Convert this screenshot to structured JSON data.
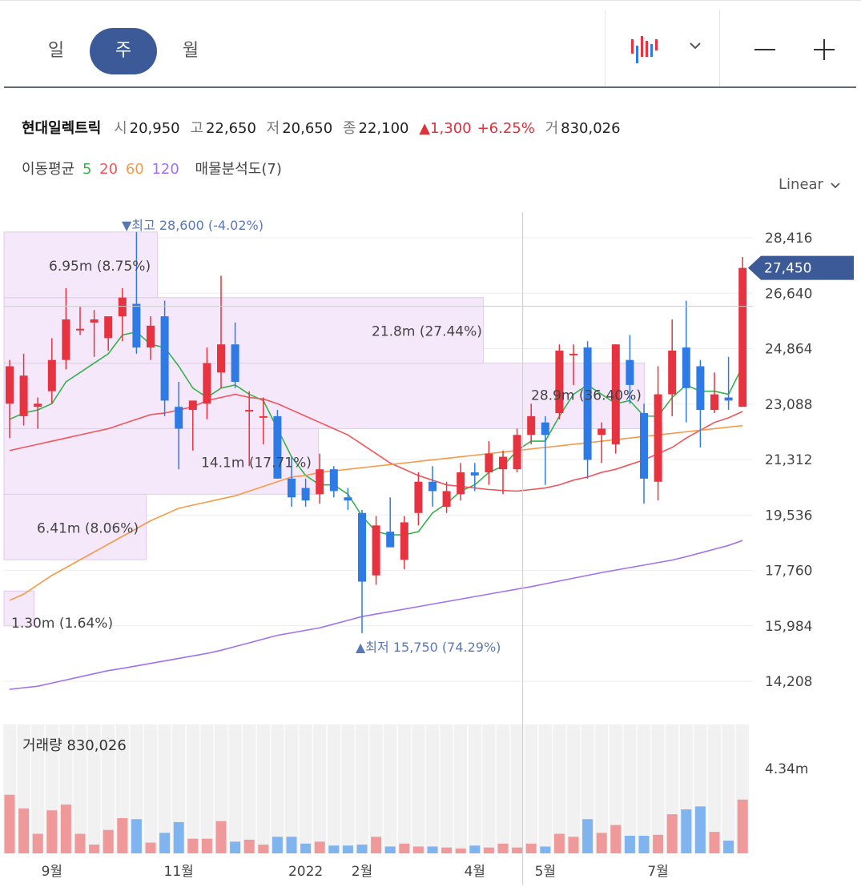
{
  "period_tabs": [
    {
      "label": "일",
      "active": false
    },
    {
      "label": "주",
      "active": true
    },
    {
      "label": "월",
      "active": false
    }
  ],
  "controls": {
    "chart_type_icon": "candlestick-icon",
    "dropdown_icon": "chevron-down-icon",
    "zoom_out_icon": "minus-icon",
    "zoom_in_icon": "plus-icon"
  },
  "stock": {
    "name": "현대일렉트릭",
    "open_label": "시",
    "open": "20,950",
    "high_label": "고",
    "high": "22,650",
    "low_label": "저",
    "low": "20,650",
    "close_label": "종",
    "close": "22,100",
    "change": "▲1,300",
    "change_pct": "+6.25%",
    "volume_label": "거",
    "volume": "830,026"
  },
  "indicators": {
    "ma_label": "이동평균",
    "ma_periods": [
      "5",
      "20",
      "60",
      "120"
    ],
    "ma_colors": [
      "#35b34a",
      "#f0555a",
      "#f59a48",
      "#a070f0"
    ],
    "profile_label": "매물분석도(7)"
  },
  "scale_label": "Linear",
  "colors": {
    "up": "#e6333f",
    "down": "#2f7be5",
    "vol_up": "#f0999b",
    "vol_down": "#7fb4ef",
    "accent": "#3d5a98",
    "profile": "#f5e8fb"
  },
  "chart_data": {
    "type": "candlestick",
    "price_axis": {
      "min": 13500,
      "max": 29200,
      "ticks": [
        "28,416",
        "26,640",
        "24,864",
        "23,088",
        "21,312",
        "19,536",
        "17,760",
        "15,984",
        "14,208"
      ]
    },
    "current_price_label": "27,450",
    "current_price": 27450,
    "crosshair_price": 26220,
    "high_annotation": "▼최고 28,600 (-4.02%)",
    "low_annotation": "▲최저 15,750 (74.29%)",
    "x_labels": [
      {
        "label": "9월",
        "index": 3
      },
      {
        "label": "11월",
        "index": 12
      },
      {
        "label": "2022",
        "index": 21
      },
      {
        "label": "2월",
        "index": 25
      },
      {
        "label": "4월",
        "index": 33
      },
      {
        "label": "5월",
        "index": 38
      },
      {
        "label": "7월",
        "index": 46
      }
    ],
    "volume_title": "거래량 830,026",
    "volume_tick": "4.34m",
    "volume_max": 4.34,
    "volume_profile": [
      {
        "low": 15984,
        "high": 17100,
        "label": "1.30m (1.64%)",
        "width_frac": 0.04
      },
      {
        "low": 18100,
        "high": 20200,
        "label": "6.41m (8.06%)",
        "width_frac": 0.19
      },
      {
        "low": 20200,
        "high": 22300,
        "label": "14.1m (17.71%)",
        "width_frac": 0.42
      },
      {
        "low": 22300,
        "high": 24400,
        "label": "28.9m (36.40%)",
        "width_frac": 0.855
      },
      {
        "low": 24400,
        "high": 26500,
        "label": "21.8m (27.44%)",
        "width_frac": 0.64
      },
      {
        "low": 26500,
        "high": 28600,
        "label": "6.95m (8.75%)",
        "width_frac": 0.205
      }
    ],
    "candles": [
      {
        "o": 23100,
        "h": 24500,
        "l": 22000,
        "c": 24300,
        "v": 3.0
      },
      {
        "o": 22700,
        "h": 24700,
        "l": 22400,
        "c": 24000,
        "v": 2.3
      },
      {
        "o": 23000,
        "h": 23300,
        "l": 22300,
        "c": 23100,
        "v": 1.0
      },
      {
        "o": 23500,
        "h": 25200,
        "l": 23100,
        "c": 24500,
        "v": 2.2
      },
      {
        "o": 24500,
        "h": 26800,
        "l": 24200,
        "c": 25800,
        "v": 2.5
      },
      {
        "o": 25500,
        "h": 26200,
        "l": 25300,
        "c": 25500,
        "v": 1.0
      },
      {
        "o": 25700,
        "h": 26100,
        "l": 24600,
        "c": 25800,
        "v": 0.45
      },
      {
        "o": 25200,
        "h": 25800,
        "l": 24800,
        "c": 25900,
        "v": 1.2
      },
      {
        "o": 25900,
        "h": 26800,
        "l": 25100,
        "c": 26500,
        "v": 1.8
      },
      {
        "o": 26300,
        "h": 28600,
        "l": 24700,
        "c": 24900,
        "v": 1.75
      },
      {
        "o": 24900,
        "h": 25900,
        "l": 24500,
        "c": 25600,
        "v": 0.55
      },
      {
        "o": 25900,
        "h": 26400,
        "l": 22700,
        "c": 23200,
        "v": 1.05
      },
      {
        "o": 23000,
        "h": 23800,
        "l": 21000,
        "c": 22300,
        "v": 1.6
      },
      {
        "o": 22900,
        "h": 23200,
        "l": 21600,
        "c": 23200,
        "v": 0.75
      },
      {
        "o": 23100,
        "h": 24900,
        "l": 22600,
        "c": 24400,
        "v": 0.75
      },
      {
        "o": 24100,
        "h": 27200,
        "l": 23600,
        "c": 25000,
        "v": 1.65
      },
      {
        "o": 25000,
        "h": 25700,
        "l": 23600,
        "c": 23800,
        "v": 0.6
      },
      {
        "o": 22900,
        "h": 23500,
        "l": 21100,
        "c": 22900,
        "v": 0.7
      },
      {
        "o": 22700,
        "h": 23300,
        "l": 21800,
        "c": 22700,
        "v": 0.45
      },
      {
        "o": 22700,
        "h": 22900,
        "l": 20700,
        "c": 20700,
        "v": 0.85
      },
      {
        "o": 20700,
        "h": 21400,
        "l": 19800,
        "c": 20100,
        "v": 0.85
      },
      {
        "o": 20400,
        "h": 20700,
        "l": 19800,
        "c": 20000,
        "v": 0.5
      },
      {
        "o": 20200,
        "h": 21500,
        "l": 19900,
        "c": 21000,
        "v": 0.6
      },
      {
        "o": 21000,
        "h": 21100,
        "l": 20100,
        "c": 20300,
        "v": 0.4
      },
      {
        "o": 20100,
        "h": 20400,
        "l": 19700,
        "c": 20000,
        "v": 0.4
      },
      {
        "o": 19600,
        "h": 19700,
        "l": 15750,
        "c": 17400,
        "v": 0.45
      },
      {
        "o": 17600,
        "h": 19500,
        "l": 17300,
        "c": 19200,
        "v": 0.85
      },
      {
        "o": 19000,
        "h": 20100,
        "l": 18500,
        "c": 18500,
        "v": 0.35
      },
      {
        "o": 18100,
        "h": 19500,
        "l": 17800,
        "c": 19300,
        "v": 0.5
      },
      {
        "o": 19600,
        "h": 20900,
        "l": 19200,
        "c": 20600,
        "v": 0.35
      },
      {
        "o": 20600,
        "h": 21100,
        "l": 19800,
        "c": 20300,
        "v": 0.35
      },
      {
        "o": 19800,
        "h": 20600,
        "l": 19600,
        "c": 20300,
        "v": 0.3
      },
      {
        "o": 20200,
        "h": 21200,
        "l": 20000,
        "c": 20900,
        "v": 0.25
      },
      {
        "o": 20900,
        "h": 21200,
        "l": 20300,
        "c": 20800,
        "v": 0.4
      },
      {
        "o": 20900,
        "h": 21900,
        "l": 20500,
        "c": 21500,
        "v": 0.3
      },
      {
        "o": 21000,
        "h": 21600,
        "l": 20200,
        "c": 21400,
        "v": 0.5
      },
      {
        "o": 21000,
        "h": 22300,
        "l": 20900,
        "c": 22100,
        "v": 0.3
      },
      {
        "o": 22100,
        "h": 23100,
        "l": 21800,
        "c": 22700,
        "v": 0.5
      },
      {
        "o": 22500,
        "h": 22700,
        "l": 20500,
        "c": 22100,
        "v": 0.35
      },
      {
        "o": 22800,
        "h": 25000,
        "l": 22600,
        "c": 24800,
        "v": 1.0
      },
      {
        "o": 24700,
        "h": 25000,
        "l": 23700,
        "c": 24700,
        "v": 0.85
      },
      {
        "o": 24900,
        "h": 25100,
        "l": 20700,
        "c": 21300,
        "v": 1.75
      },
      {
        "o": 22100,
        "h": 22500,
        "l": 21200,
        "c": 22300,
        "v": 1.05
      },
      {
        "o": 21800,
        "h": 25000,
        "l": 21500,
        "c": 25000,
        "v": 1.45
      },
      {
        "o": 24500,
        "h": 25300,
        "l": 23100,
        "c": 23700,
        "v": 0.9
      },
      {
        "o": 22800,
        "h": 23100,
        "l": 19900,
        "c": 20700,
        "v": 0.9
      },
      {
        "o": 20600,
        "h": 24300,
        "l": 20000,
        "c": 23400,
        "v": 0.95
      },
      {
        "o": 23400,
        "h": 25800,
        "l": 22700,
        "c": 24800,
        "v": 2.0
      },
      {
        "o": 24900,
        "h": 26400,
        "l": 22500,
        "c": 23600,
        "v": 2.25
      },
      {
        "o": 24300,
        "h": 24500,
        "l": 21700,
        "c": 22900,
        "v": 2.4
      },
      {
        "o": 22900,
        "h": 24100,
        "l": 22800,
        "c": 23400,
        "v": 1.1
      },
      {
        "o": 23300,
        "h": 24600,
        "l": 22900,
        "c": 23200,
        "v": 0.65
      },
      {
        "o": 23000,
        "h": 27800,
        "l": 23100,
        "c": 27450,
        "v": 2.75
      }
    ],
    "ma_series": [
      {
        "period": "5",
        "values": [
          22600,
          22800,
          22900,
          23100,
          23800,
          24100,
          24400,
          24700,
          25300,
          25400,
          25000,
          24900,
          24300,
          23600,
          23300,
          23600,
          23700,
          23400,
          23200,
          22300,
          21400,
          20800,
          20500,
          20500,
          20200,
          19500,
          19000,
          18900,
          18900,
          19000,
          19600,
          19900,
          20300,
          20500,
          20900,
          21100,
          21600,
          21900,
          21900,
          22700,
          23400,
          23700,
          23400,
          23100,
          23200,
          22700,
          22700,
          23300,
          23700,
          23500,
          23500,
          23400,
          24300
        ]
      },
      {
        "period": "20",
        "values": [
          21600,
          21700,
          21800,
          21900,
          22000,
          22100,
          22200,
          22300,
          22450,
          22600,
          22750,
          22800,
          22900,
          23000,
          23200,
          23300,
          23400,
          23300,
          23250,
          23100,
          22900,
          22700,
          22500,
          22300,
          22100,
          21800,
          21500,
          21200,
          21000,
          20800,
          20650,
          20500,
          20450,
          20400,
          20350,
          20320,
          20300,
          20350,
          20400,
          20500,
          20650,
          20750,
          20900,
          21000,
          21150,
          21300,
          21500,
          21700,
          22000,
          22250,
          22500,
          22650,
          22850
        ]
      },
      {
        "period": "60",
        "values": [
          16800,
          17000,
          17300,
          17600,
          17850,
          18100,
          18350,
          18600,
          18850,
          19100,
          19350,
          19550,
          19750,
          19850,
          19950,
          20050,
          20150,
          20300,
          20450,
          20600,
          20750,
          20800,
          20900,
          20950,
          21000,
          21050,
          21100,
          21150,
          21200,
          21250,
          21300,
          21350,
          21400,
          21450,
          21500,
          21550,
          21600,
          21650,
          21700,
          21750,
          21800,
          21850,
          21900,
          21950,
          22000,
          22050,
          22100,
          22150,
          22200,
          22250,
          22300,
          22350,
          22400
        ]
      },
      {
        "period": "120",
        "values": [
          13950,
          14000,
          14050,
          14150,
          14250,
          14350,
          14450,
          14550,
          14620,
          14700,
          14780,
          14860,
          14940,
          15020,
          15100,
          15200,
          15320,
          15440,
          15560,
          15680,
          15760,
          15840,
          15920,
          16040,
          16160,
          16280,
          16360,
          16440,
          16520,
          16600,
          16680,
          16760,
          16840,
          16920,
          17000,
          17080,
          17160,
          17240,
          17330,
          17420,
          17510,
          17600,
          17690,
          17770,
          17850,
          17930,
          18010,
          18090,
          18200,
          18320,
          18440,
          18560,
          18720
        ]
      }
    ]
  }
}
